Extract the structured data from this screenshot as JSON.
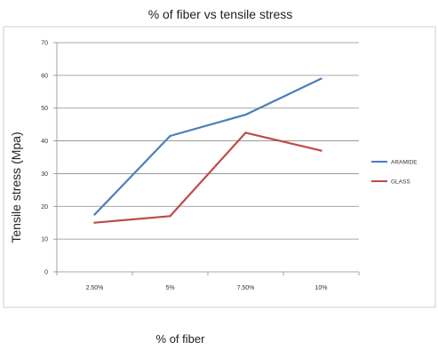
{
  "chart_data": {
    "type": "line",
    "title": "% of fiber vs tensile stress",
    "xlabel": "% of fiber",
    "ylabel": "Tensile stress (Mpa)",
    "categories": [
      "2.50%",
      "5%",
      "7.50%",
      "10%"
    ],
    "ylim": [
      0,
      70
    ],
    "yticks": [
      0,
      10,
      20,
      30,
      40,
      50,
      60,
      70
    ],
    "grid": true,
    "legend": "right",
    "series": [
      {
        "name": "ARAMIDE",
        "values": [
          17.5,
          41.5,
          48,
          59
        ],
        "color": "#4a7ebb"
      },
      {
        "name": "GLASS",
        "values": [
          15,
          17,
          42.5,
          37
        ],
        "color": "#be4b48"
      }
    ]
  }
}
